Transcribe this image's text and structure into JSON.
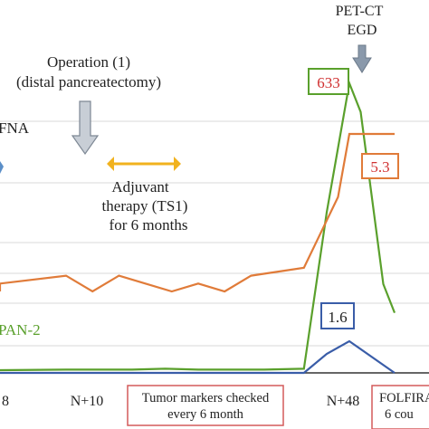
{
  "chart_data": {
    "type": "line",
    "title": "",
    "xlabel": "",
    "ylabel": "",
    "grid": true,
    "x_tick_labels": [
      "8",
      "N+10",
      "N+48"
    ],
    "series": [
      {
        "name": "PAN-2",
        "color": "#5aa02c",
        "points": [
          [
            -10,
            0
          ],
          [
            0,
            0
          ],
          [
            10,
            0.2
          ],
          [
            20,
            0.2
          ],
          [
            25,
            0.5
          ],
          [
            30,
            0.2
          ],
          [
            35,
            0.2
          ],
          [
            40,
            0.2
          ],
          [
            46,
            0.5
          ],
          [
            48,
            55
          ],
          [
            50,
            100
          ],
          [
            51,
            90
          ],
          [
            53,
            30
          ],
          [
            54,
            20
          ]
        ]
      },
      {
        "name": "",
        "color": "#e07b39",
        "points": [
          [
            -10,
            0
          ],
          [
            0,
            5
          ],
          [
            10,
            10
          ],
          [
            14,
            0
          ],
          [
            18,
            10
          ],
          [
            22,
            5
          ],
          [
            26,
            0
          ],
          [
            30,
            5
          ],
          [
            34,
            0
          ],
          [
            38,
            10
          ],
          [
            46,
            15
          ],
          [
            49,
            60
          ],
          [
            50,
            100
          ],
          [
            54,
            100
          ]
        ]
      },
      {
        "name": "",
        "color": "#3a5da8",
        "points": [
          [
            -10,
            0
          ],
          [
            0,
            0
          ],
          [
            10,
            0
          ],
          [
            20,
            0
          ],
          [
            30,
            0
          ],
          [
            40,
            0
          ],
          [
            46,
            0
          ],
          [
            48,
            60
          ],
          [
            50,
            100
          ],
          [
            54,
            0
          ]
        ]
      }
    ],
    "data_labels": [
      {
        "text": "633",
        "color": "#d03030",
        "border": "#5aa02c"
      },
      {
        "text": "5.3",
        "color": "#d03030",
        "border": "#e07b39"
      },
      {
        "text": "1.6",
        "color": "#222222",
        "border": "#3a5da8"
      }
    ],
    "annotations": {
      "petct": "PET-CT",
      "egd": "EGD",
      "operation_line1": "Operation (1)",
      "operation_line2": "(distal pancreatectomy)",
      "fna": "FNA",
      "adjuvant_line1": "Adjuvant",
      "adjuvant_line2": "therapy (TS1)",
      "adjuvant_line3": "for 6 months",
      "pan2": "PAN-2",
      "tumor_line1": "Tumor markers checked",
      "tumor_line2": "every 6 month",
      "folfira_line1": "FOLFIRA",
      "folfira_line2": "6 cou"
    }
  }
}
